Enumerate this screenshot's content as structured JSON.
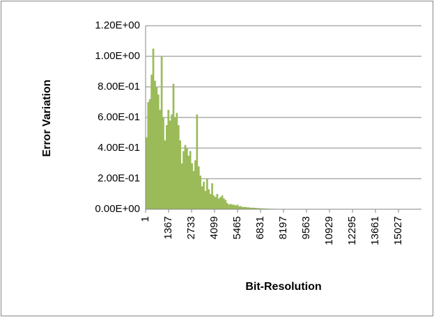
{
  "chart_data": {
    "type": "bar",
    "x_label": "Bit-Resolution",
    "y_label": "Error  Variation",
    "x": [
      1,
      101,
      201,
      301,
      401,
      501,
      601,
      701,
      801,
      901,
      1001,
      1101,
      1201,
      1301,
      1401,
      1501,
      1601,
      1701,
      1801,
      1901,
      2001,
      2101,
      2201,
      2301,
      2401,
      2501,
      2601,
      2701,
      2801,
      2901,
      3001,
      3101,
      3201,
      3301,
      3401,
      3501,
      3601,
      3701,
      3801,
      3901,
      4001,
      4101,
      4201,
      4301,
      4401,
      4501,
      4601,
      4701,
      4801,
      4901,
      5001,
      5101,
      5201,
      5301,
      5401,
      5501,
      5601,
      5701,
      5801,
      5901,
      6001,
      6101,
      6201,
      6301,
      6401,
      6501,
      6601,
      6701,
      6801,
      6901,
      7001,
      7101,
      7201,
      7301,
      7401,
      7501,
      7601,
      7701,
      7801,
      7901,
      8001,
      8101,
      8201,
      8301,
      8401,
      8501,
      8601,
      8701
    ],
    "values": [
      0.47,
      0.7,
      0.72,
      0.88,
      1.05,
      0.84,
      0.8,
      0.75,
      0.65,
      1.0,
      0.6,
      0.45,
      0.55,
      0.65,
      0.58,
      0.62,
      0.82,
      0.6,
      0.63,
      0.55,
      0.45,
      0.3,
      0.38,
      0.42,
      0.4,
      0.35,
      0.38,
      0.3,
      0.25,
      0.32,
      0.62,
      0.28,
      0.22,
      0.15,
      0.18,
      0.12,
      0.2,
      0.13,
      0.1,
      0.17,
      0.09,
      0.08,
      0.1,
      0.07,
      0.08,
      0.09,
      0.07,
      0.06,
      0.04,
      0.03,
      0.035,
      0.03,
      0.03,
      0.025,
      0.03,
      0.02,
      0.02,
      0.015,
      0.015,
      0.015,
      0.012,
      0.012,
      0.01,
      0.01,
      0.01,
      0.008,
      0.008,
      0.007,
      0.006,
      0.006,
      0.005,
      0.005,
      0.004,
      0.004,
      0.003,
      0.003,
      0.003,
      0.002,
      0.002,
      0.002,
      0.002,
      0.002,
      0.001,
      0.001,
      0.001,
      0.001,
      0.001,
      0.001
    ],
    "color": "#9bbb59",
    "xlim": [
      1,
      16393
    ],
    "xticks": [
      1,
      1367,
      2733,
      4099,
      5465,
      6831,
      8197,
      9563,
      10929,
      12295,
      13661,
      15027
    ],
    "ylim": [
      0,
      1.2
    ],
    "yticks": [
      {
        "value": 0,
        "label": "0.00E+00"
      },
      {
        "value": 0.2,
        "label": "2.00E-01"
      },
      {
        "value": 0.4,
        "label": "4.00E-01"
      },
      {
        "value": 0.6,
        "label": "6.00E-01"
      },
      {
        "value": 0.8,
        "label": "8.00E-01"
      },
      {
        "value": 1.0,
        "label": "1.00E+00"
      },
      {
        "value": 1.2,
        "label": "1.20E+00"
      }
    ],
    "grid": true
  }
}
